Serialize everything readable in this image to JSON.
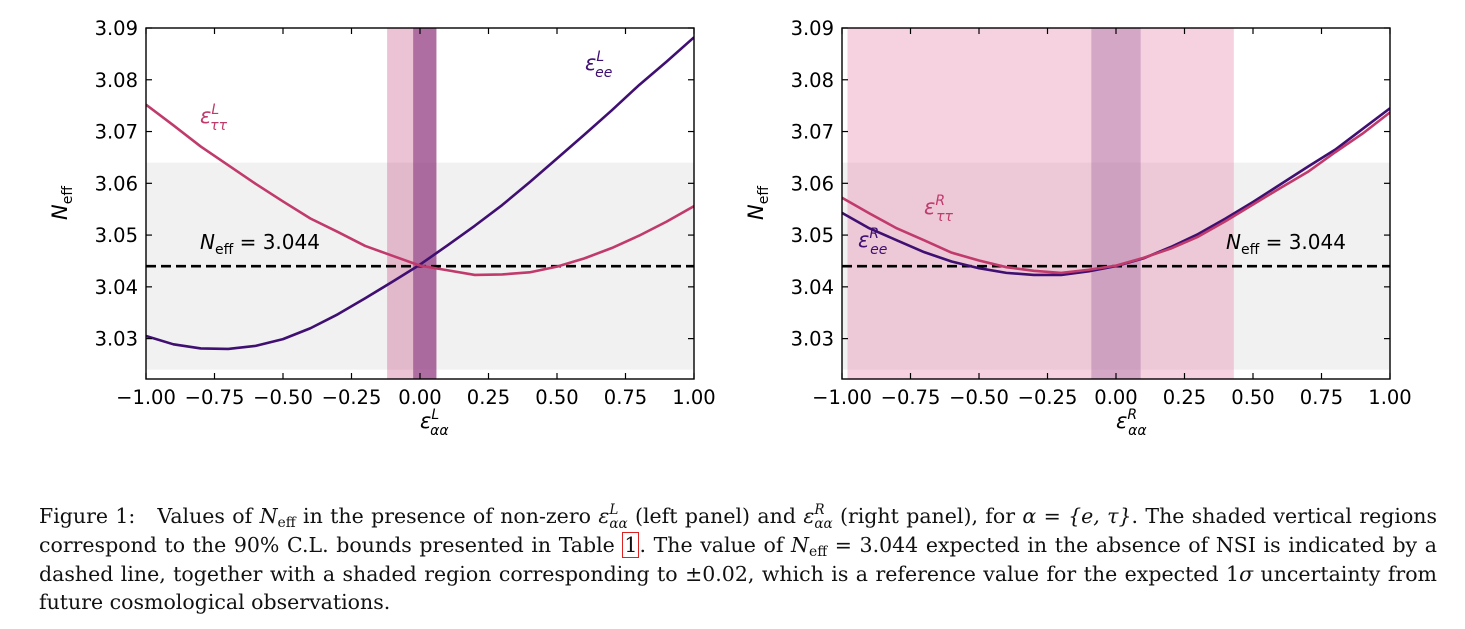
{
  "chart_data": [
    {
      "type": "line",
      "panel": "left",
      "xlim": [
        -1.0,
        1.0
      ],
      "ylim": [
        3.0222,
        3.09
      ],
      "x_ticks": [
        -1.0,
        -0.75,
        -0.5,
        -0.25,
        0.0,
        0.25,
        0.5,
        0.75,
        1.0
      ],
      "x_tick_labels": [
        "−1.00",
        "−0.75",
        "−0.50",
        "−0.25",
        "0.00",
        "0.25",
        "0.50",
        "0.75",
        "1.00"
      ],
      "y_ticks": [
        3.03,
        3.04,
        3.05,
        3.06,
        3.07,
        3.08,
        3.09
      ],
      "y_tick_labels": [
        "3.03",
        "3.04",
        "3.05",
        "3.06",
        "3.07",
        "3.08",
        "3.09"
      ],
      "xlabel": {
        "base": "ε",
        "sup": "L",
        "sub": "αα"
      },
      "ylabel": {
        "base": "N",
        "sub": "eff"
      },
      "reference_line": {
        "value": 3.044,
        "label_base": "N",
        "label_sub": "eff",
        "label_rest": " = 3.044"
      },
      "reference_band": [
        3.024,
        3.064
      ],
      "vertical_bands": [
        {
          "name": "tau-band",
          "range": [
            -0.12,
            0.06
          ],
          "color": "#c4457e",
          "opacity": 0.33
        },
        {
          "name": "ee-band",
          "range": [
            -0.025,
            0.06
          ],
          "color": "#7d2a78",
          "opacity": 0.55
        }
      ],
      "series": [
        {
          "name": "ee",
          "label_sup": "L",
          "label_sub": "ee",
          "color": "#3f0f72",
          "x": [
            -1.0,
            -0.9,
            -0.8,
            -0.7,
            -0.6,
            -0.5,
            -0.4,
            -0.3,
            -0.2,
            -0.1,
            0.0,
            0.1,
            0.2,
            0.3,
            0.4,
            0.5,
            0.6,
            0.7,
            0.8,
            0.9,
            1.0
          ],
          "values": [
            3.0305,
            3.0289,
            3.0281,
            3.028,
            3.0286,
            3.0299,
            3.032,
            3.0347,
            3.0378,
            3.041,
            3.0443,
            3.048,
            3.0518,
            3.0558,
            3.0602,
            3.0648,
            3.0694,
            3.0741,
            3.079,
            3.0835,
            3.0882
          ]
        },
        {
          "name": "tautau",
          "label_sup": "L",
          "label_sub": "ττ",
          "color": "#c13a6c",
          "x": [
            -1.0,
            -0.9,
            -0.8,
            -0.7,
            -0.6,
            -0.5,
            -0.4,
            -0.3,
            -0.2,
            -0.1,
            0.0,
            0.1,
            0.2,
            0.3,
            0.4,
            0.5,
            0.6,
            0.7,
            0.8,
            0.9,
            1.0
          ],
          "values": [
            3.0752,
            3.0712,
            3.0671,
            3.0635,
            3.0599,
            3.0565,
            3.0532,
            3.0506,
            3.0479,
            3.046,
            3.0441,
            3.0432,
            3.0423,
            3.0424,
            3.0428,
            3.0439,
            3.0455,
            3.0475,
            3.0499,
            3.0526,
            3.0556
          ]
        }
      ]
    },
    {
      "type": "line",
      "panel": "right",
      "xlim": [
        -1.0,
        1.0
      ],
      "ylim": [
        3.0222,
        3.09
      ],
      "x_ticks": [
        -1.0,
        -0.75,
        -0.5,
        -0.25,
        0.0,
        0.25,
        0.5,
        0.75,
        1.0
      ],
      "x_tick_labels": [
        "−1.00",
        "−0.75",
        "−0.50",
        "−0.25",
        "0.00",
        "0.25",
        "0.50",
        "0.75",
        "1.00"
      ],
      "y_ticks": [
        3.03,
        3.04,
        3.05,
        3.06,
        3.07,
        3.08,
        3.09
      ],
      "y_tick_labels": [
        "3.03",
        "3.04",
        "3.05",
        "3.06",
        "3.07",
        "3.08",
        "3.09"
      ],
      "xlabel": {
        "base": "ε",
        "sup": "R",
        "sub": "αα"
      },
      "ylabel": {
        "base": "N",
        "sub": "eff"
      },
      "reference_line": {
        "value": 3.044,
        "label_base": "N",
        "label_sub": "eff",
        "label_rest": " = 3.044"
      },
      "reference_band": [
        3.024,
        3.064
      ],
      "vertical_bands": [
        {
          "name": "tau-band",
          "range": [
            -0.98,
            0.43
          ],
          "color": "#e88ab0",
          "opacity": 0.38
        },
        {
          "name": "ee-band",
          "range": [
            -0.09,
            0.09
          ],
          "color": "#7d3a85",
          "opacity": 0.28
        }
      ],
      "series": [
        {
          "name": "ee",
          "label_sup": "R",
          "label_sub": "ee",
          "color": "#3f0f72",
          "x": [
            -1.0,
            -0.9,
            -0.8,
            -0.7,
            -0.6,
            -0.5,
            -0.4,
            -0.3,
            -0.2,
            -0.1,
            0.0,
            0.1,
            0.2,
            0.3,
            0.4,
            0.5,
            0.6,
            0.7,
            0.8,
            0.9,
            1.0
          ],
          "values": [
            3.0543,
            3.0513,
            3.049,
            3.0467,
            3.0449,
            3.0436,
            3.0427,
            3.0423,
            3.0423,
            3.043,
            3.044,
            3.0455,
            3.0477,
            3.0502,
            3.0532,
            3.0564,
            3.0598,
            3.0632,
            3.0665,
            3.0705,
            3.0745
          ]
        },
        {
          "name": "tautau",
          "label_sup": "R",
          "label_sub": "ττ",
          "color": "#c13a6c",
          "x": [
            -1.0,
            -0.9,
            -0.8,
            -0.7,
            -0.6,
            -0.5,
            -0.4,
            -0.3,
            -0.2,
            -0.1,
            0.0,
            0.1,
            0.2,
            0.3,
            0.4,
            0.5,
            0.6,
            0.7,
            0.8,
            0.9,
            1.0
          ],
          "values": [
            3.0572,
            3.0542,
            3.0513,
            3.049,
            3.0466,
            3.0451,
            3.0438,
            3.0431,
            3.0427,
            3.0433,
            3.0441,
            3.0456,
            3.0474,
            3.0497,
            3.0527,
            3.0559,
            3.0591,
            3.0622,
            3.066,
            3.0696,
            3.0737
          ]
        }
      ]
    }
  ],
  "caption": {
    "fig": "Figure 1:",
    "t1": "Values of",
    "neff_base": "N",
    "neff_sub": "eff",
    "t2": "in the presence of non-zero",
    "eps": "ε",
    "sup_l": "L",
    "sub_aa": "αα",
    "t3": "(left panel) and",
    "sup_r": "R",
    "t4": "(right panel), for",
    "alpha_set": "α = {e, τ}",
    "t5": ". The shaded vertical regions correspond to the 90% C.L. bounds presented in Table",
    "table_ref": "1",
    "t6": ". The value of",
    "t7": "= 3.044 expected in the absence of NSI is indicated by a dashed line, together with a shaded region corresponding to ±0.02, which is a reference value for the expected 1",
    "sigma": "σ",
    "t8": "uncertainty from future cosmological observations."
  }
}
